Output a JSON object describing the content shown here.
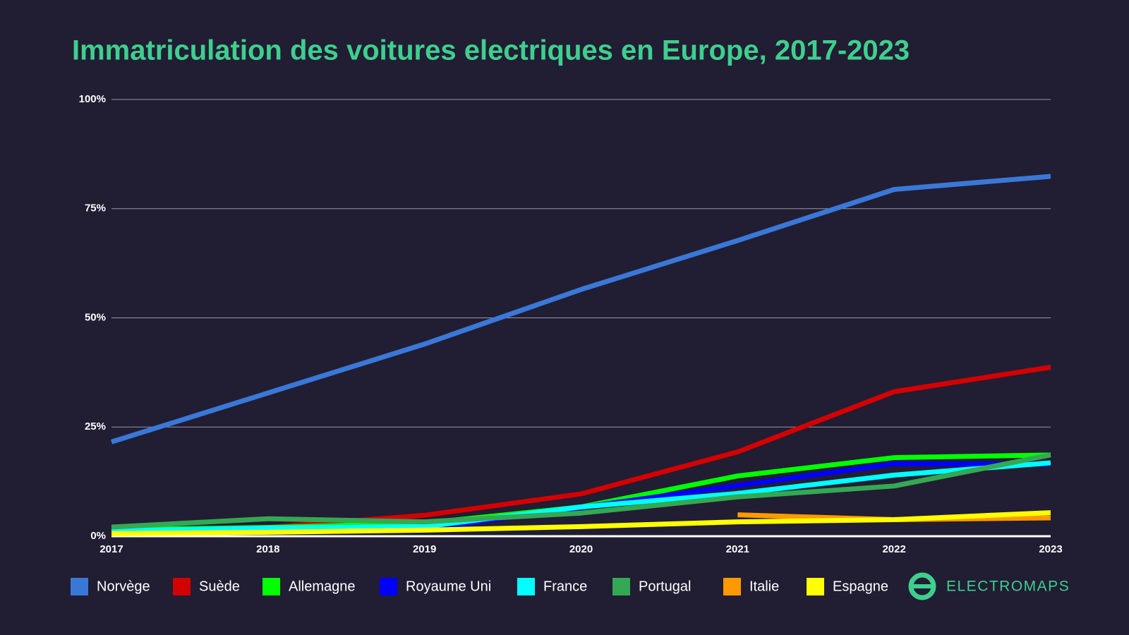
{
  "chart_data": {
    "type": "line",
    "title": "Immatriculation des voitures electriques en Europe, 2017-2023",
    "categories": [
      "2017",
      "2018",
      "2019",
      "2020",
      "2021",
      "2022",
      "2023"
    ],
    "series": [
      {
        "name": "Norvège",
        "color": "#3a78d8",
        "values": [
          21.6,
          32.8,
          44,
          56.5,
          67.7,
          79.4,
          82.4
        ]
      },
      {
        "name": "Suède",
        "color": "#d40000",
        "values": [
          1,
          2,
          4.8,
          9.7,
          19.3,
          33.1,
          38.7
        ]
      },
      {
        "name": "Allemagne",
        "color": "#00ff00",
        "values": [
          1.5,
          2,
          3,
          6.7,
          13.8,
          18,
          18.6
        ]
      },
      {
        "name": "Royaume Uni",
        "color": "#0000ff",
        "values": [
          1,
          1.5,
          1.6,
          6.6,
          11.6,
          16.6,
          16.5
        ]
      },
      {
        "name": "France",
        "color": "#00ffff",
        "values": [
          1.2,
          1.9,
          2.2,
          6.7,
          9.8,
          14,
          16.8
        ]
      },
      {
        "name": "Portugal",
        "color": "#34a853",
        "values": [
          2.1,
          4,
          3.3,
          5.3,
          9,
          11.5,
          18.6
        ]
      },
      {
        "name": "Italie",
        "color": "#ff9900",
        "values": [
          null,
          null,
          null,
          null,
          4.9,
          3.8,
          4.2
        ]
      },
      {
        "name": "Espagne",
        "color": "#ffff00",
        "values": [
          0.6,
          0.9,
          1.4,
          2.2,
          3.3,
          3.8,
          5.4
        ]
      }
    ],
    "ylim": [
      0,
      100
    ],
    "yticks": [
      {
        "value": 0,
        "label": "0%"
      },
      {
        "value": 25,
        "label": "25%"
      },
      {
        "value": 50,
        "label": "50%"
      },
      {
        "value": 75,
        "label": "75%"
      },
      {
        "value": 100,
        "label": "100%"
      }
    ],
    "grid": true,
    "legend": "bottom"
  },
  "brand": "ELECTROMAPS"
}
